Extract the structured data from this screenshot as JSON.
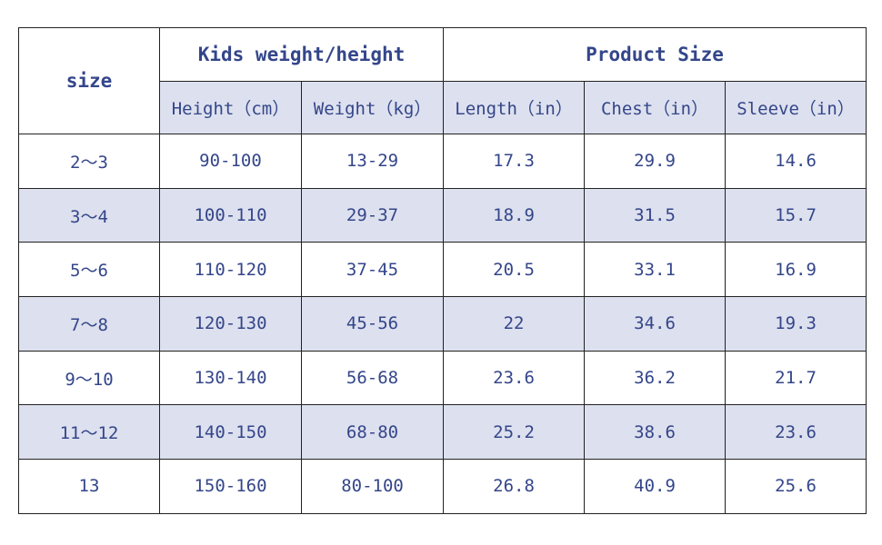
{
  "table": {
    "header": {
      "size": "size",
      "group1": "Kids weight/height",
      "group2": "Product Size"
    },
    "subheaders": [
      "Height（cm）",
      "Weight（kg）",
      "Length（in）",
      "Chest（in）",
      "Sleeve（in）"
    ],
    "rows": [
      [
        "2～3",
        "90-100",
        "13-29",
        "17.3",
        "29.9",
        "14.6"
      ],
      [
        "3～4",
        "100-110",
        "29-37",
        "18.9",
        "31.5",
        "15.7"
      ],
      [
        "5～6",
        "110-120",
        "37-45",
        "20.5",
        "33.1",
        "16.9"
      ],
      [
        "7～8",
        "120-130",
        "45-56",
        "22",
        "34.6",
        "19.3"
      ],
      [
        "9～10",
        "130-140",
        "56-68",
        "23.6",
        "36.2",
        "21.7"
      ],
      [
        "11～12",
        "140-150",
        "68-80",
        "25.2",
        "38.6",
        "23.6"
      ],
      [
        "13",
        "150-160",
        "80-100",
        "26.8",
        "40.9",
        "25.6"
      ]
    ]
  }
}
